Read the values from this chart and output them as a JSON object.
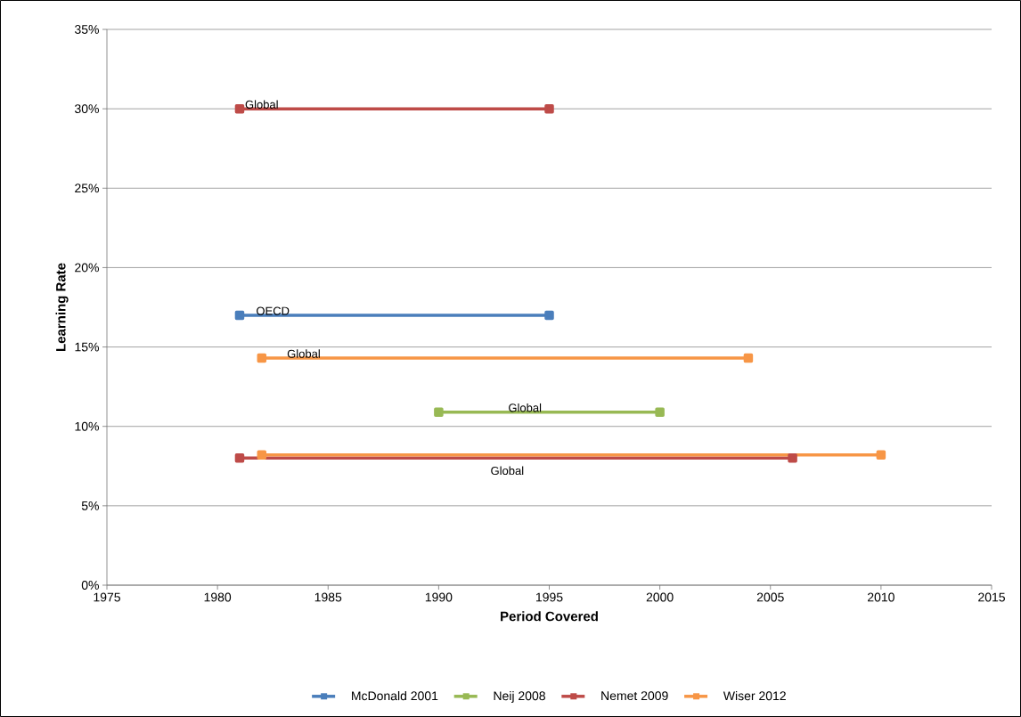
{
  "chart_data": {
    "type": "line",
    "xlabel": "Period Covered",
    "ylabel": "Learning Rate",
    "xlim": [
      1975,
      2015
    ],
    "xticks": [
      1975,
      1980,
      1985,
      1990,
      1995,
      2000,
      2005,
      2010,
      2015
    ],
    "ylim": [
      0,
      35
    ],
    "yticks": [
      {
        "value": 0,
        "label": "0%"
      },
      {
        "value": 5,
        "label": "5%"
      },
      {
        "value": 10,
        "label": "10%"
      },
      {
        "value": 15,
        "label": "15%"
      },
      {
        "value": 20,
        "label": "20%"
      },
      {
        "value": 25,
        "label": "25%"
      },
      {
        "value": 30,
        "label": "30%"
      },
      {
        "value": 35,
        "label": "35%"
      }
    ],
    "grid": "y",
    "legend": "bottom",
    "marker": "square",
    "line_style": "solid",
    "series": [
      {
        "name": "McDonald 2001",
        "color": "#4a7ebb",
        "x": [
          1981,
          1995
        ],
        "values": [
          17,
          17
        ]
      },
      {
        "name": "Neij 2008",
        "color": "#98b954",
        "x": [
          1990,
          2000
        ],
        "values": [
          10.9,
          10.9
        ]
      },
      {
        "name": "Nemet 2009",
        "color": "#be4b48",
        "x": [
          1981,
          1995,
          null,
          1981,
          2006
        ],
        "values": [
          30,
          30,
          null,
          8,
          8
        ]
      },
      {
        "name": "Wiser 2012",
        "color": "#f79646",
        "x": [
          1982,
          2004,
          null,
          1982,
          2010
        ],
        "values": [
          14.3,
          14.3,
          null,
          8.2,
          8.2
        ]
      }
    ],
    "annotations": [
      {
        "text": "Global",
        "x": 1982,
        "y": 30
      },
      {
        "text": "OECD",
        "x": 1982.5,
        "y": 17
      },
      {
        "text": "Global",
        "x": 1983.9,
        "y": 14.3
      },
      {
        "text": "Global",
        "x": 1993.9,
        "y": 10.9
      },
      {
        "text": "Global",
        "x": 1993.1,
        "y": 8
      }
    ]
  }
}
